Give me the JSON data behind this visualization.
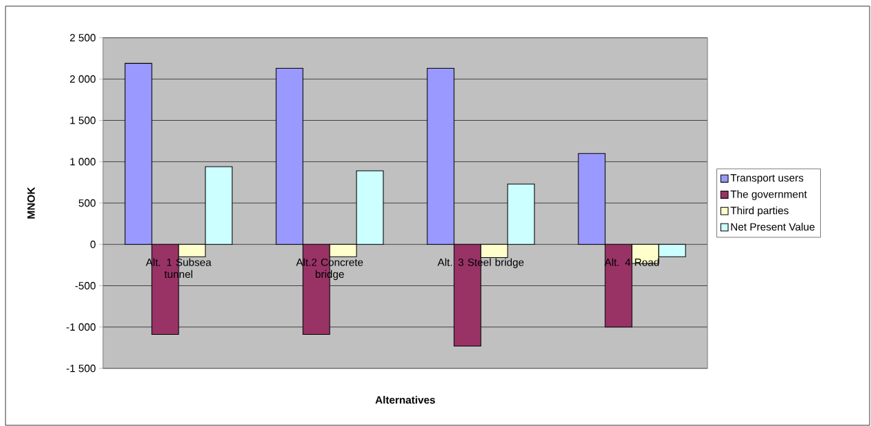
{
  "chart_data": {
    "type": "bar",
    "xlabel": "Alternatives",
    "ylabel": "MNOK",
    "categories": [
      "Alt. 1 Subsea tunnel",
      "Alt.2 Concrete bridge",
      "Alt. 3 Steel bridge",
      "Alt. 4 Road"
    ],
    "series": [
      {
        "name": "Transport users",
        "color": "#9999ff",
        "values": [
          2190,
          2130,
          2130,
          1100
        ]
      },
      {
        "name": "The government",
        "color": "#993366",
        "values": [
          -1090,
          -1090,
          -1230,
          -1000
        ]
      },
      {
        "name": "Third parties",
        "color": "#ffffcc",
        "values": [
          -150,
          -150,
          -160,
          -230
        ]
      },
      {
        "name": "Net Present Value",
        "color": "#ccffff",
        "values": [
          940,
          890,
          730,
          -150
        ]
      }
    ],
    "ylim": [
      -1500,
      2500
    ],
    "yticks": [
      {
        "value": -1500,
        "label": "-1 500"
      },
      {
        "value": -1000,
        "label": "-1 000"
      },
      -500,
      0,
      500,
      {
        "value": 1000,
        "label": "1 000"
      },
      {
        "value": 1500,
        "label": "1 500"
      },
      {
        "value": 2000,
        "label": "2 000"
      },
      {
        "value": 2500,
        "label": "2 500"
      }
    ],
    "grid": "y",
    "legend": "right"
  }
}
